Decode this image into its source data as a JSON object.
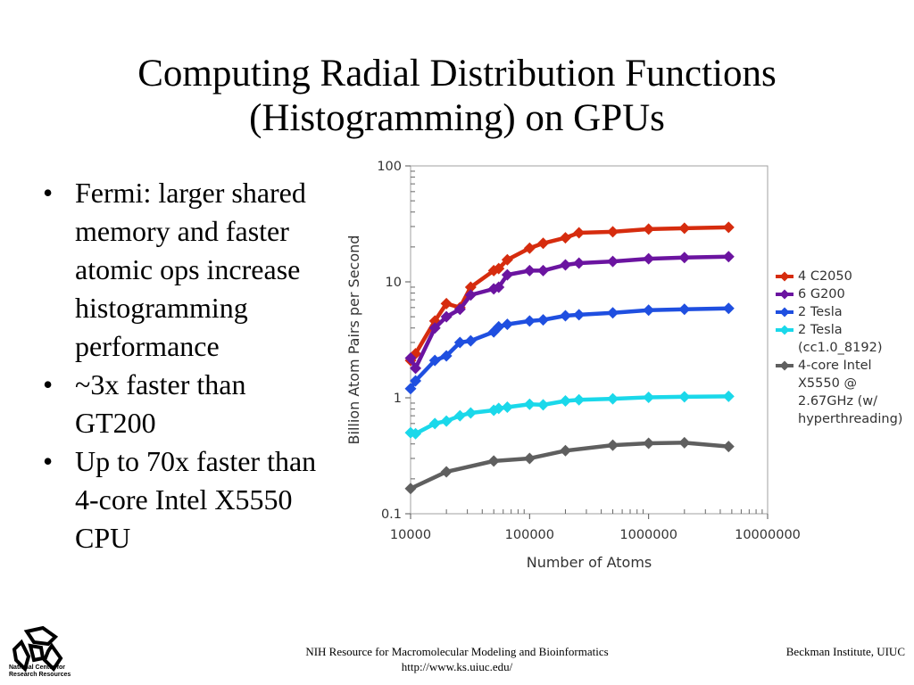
{
  "slide": {
    "title_line1": "Computing Radial Distribution Functions",
    "title_line2": "(Histogramming) on GPUs",
    "bullets": [
      "Fermi: larger shared memory and faster atomic ops increase histogramming performance",
      "~3x faster than GT200",
      "Up to 70x faster than 4-core Intel X5550 CPU"
    ],
    "footer_center_line1": "NIH Resource for Macromolecular Modeling and Bioinformatics",
    "footer_center_line2": "http://www.ks.uiuc.edu/",
    "footer_right": "Beckman Institute, UIUC",
    "logo_text_line1": "National Center for",
    "logo_text_line2": "Research Resources"
  },
  "chart_data": {
    "type": "line",
    "xlabel": "Number of Atoms",
    "ylabel": "Billion Atom Pairs per Second",
    "xscale": "log",
    "yscale": "log",
    "xlim": [
      10000,
      10000000
    ],
    "ylim": [
      0.1,
      100
    ],
    "xticks": [
      "10000",
      "100000",
      "1000000",
      "10000000"
    ],
    "yticks": [
      "0.1",
      "1",
      "10",
      "100"
    ],
    "grid": false,
    "legend_position": "right",
    "series": [
      {
        "name": "4 C2050",
        "color": "#d62c0e",
        "x": [
          10000,
          11000,
          16000,
          20000,
          26000,
          32000,
          50000,
          55000,
          65000,
          100000,
          130000,
          200000,
          260000,
          500000,
          1000000,
          2000000,
          4700000
        ],
        "y": [
          2.1,
          2.4,
          4.6,
          6.5,
          6.0,
          9.0,
          12.5,
          13.0,
          15.5,
          19.5,
          21.5,
          24.0,
          26.5,
          27.0,
          28.5,
          29.0,
          29.5
        ]
      },
      {
        "name": "6 G200",
        "color": "#6b14a0",
        "x": [
          10000,
          11000,
          16000,
          20000,
          26000,
          32000,
          50000,
          55000,
          65000,
          100000,
          130000,
          200000,
          260000,
          500000,
          1000000,
          2000000,
          4700000
        ],
        "y": [
          2.2,
          1.8,
          4.0,
          5.0,
          5.8,
          7.7,
          8.7,
          9.0,
          11.5,
          12.5,
          12.5,
          14.0,
          14.5,
          15.0,
          15.8,
          16.2,
          16.5
        ]
      },
      {
        "name": "2 Tesla",
        "color": "#1f4fe0",
        "x": [
          10000,
          11000,
          16000,
          20000,
          26000,
          32000,
          50000,
          55000,
          65000,
          100000,
          130000,
          200000,
          260000,
          500000,
          1000000,
          2000000,
          4700000
        ],
        "y": [
          1.2,
          1.4,
          2.1,
          2.3,
          3.0,
          3.1,
          3.7,
          4.1,
          4.3,
          4.6,
          4.7,
          5.1,
          5.2,
          5.4,
          5.7,
          5.8,
          5.9
        ]
      },
      {
        "name": "2 Tesla (cc1.0_8192)",
        "color": "#1ad8ea",
        "x": [
          10000,
          11000,
          16000,
          20000,
          26000,
          32000,
          50000,
          55000,
          65000,
          100000,
          130000,
          200000,
          260000,
          500000,
          1000000,
          2000000,
          4700000
        ],
        "y": [
          0.5,
          0.49,
          0.6,
          0.63,
          0.7,
          0.74,
          0.78,
          0.81,
          0.83,
          0.88,
          0.87,
          0.94,
          0.96,
          0.98,
          1.01,
          1.02,
          1.03
        ]
      },
      {
        "name": "4-core Intel X5550 @ 2.67GHz (w/ hyperthreading)",
        "color": "#5f5f5f",
        "x": [
          10000,
          20000,
          50000,
          100000,
          200000,
          500000,
          1000000,
          2000000,
          4700000
        ],
        "y": [
          0.165,
          0.23,
          0.285,
          0.3,
          0.35,
          0.39,
          0.405,
          0.41,
          0.38
        ]
      }
    ]
  }
}
